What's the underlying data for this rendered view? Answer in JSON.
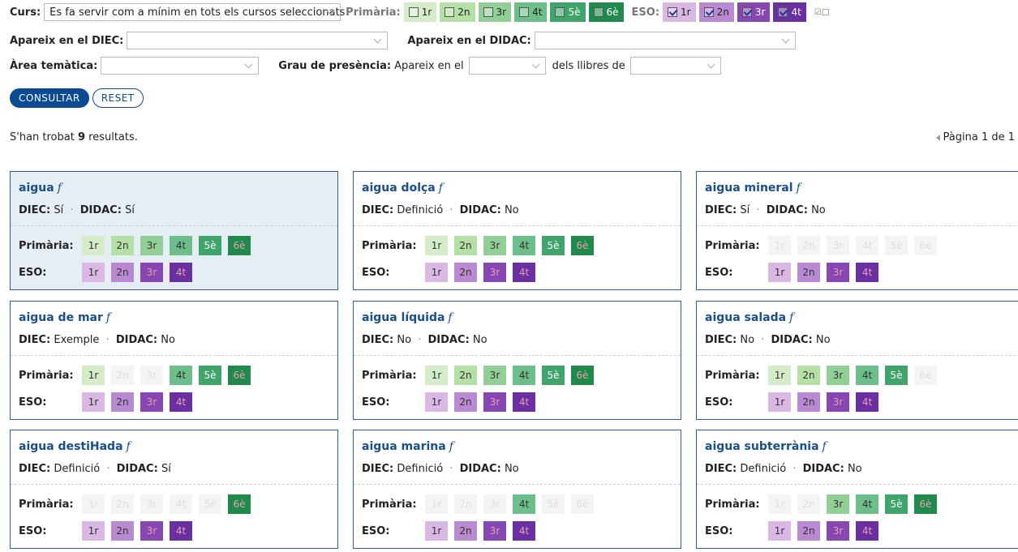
{
  "filters": {
    "curs_label": "Curs:",
    "curs_value": "Es fa servir com a mínim en tots els cursos seleccionats",
    "primaria_label": "Primària:",
    "eso_label": "ESO:",
    "primaria_levels": [
      "1r",
      "2n",
      "3r",
      "4t",
      "5è",
      "6è"
    ],
    "eso_levels": [
      "1r",
      "2n",
      "3r",
      "4t"
    ],
    "primaria_checked": [
      false,
      false,
      false,
      false,
      false,
      false
    ],
    "eso_checked": [
      true,
      true,
      true,
      true
    ],
    "diec_label": "Apareix en el DIEC:",
    "didac_label": "Apareix en el DIDAC:",
    "area_label": "Àrea temàtica:",
    "grau_label": "Grau de presència:",
    "grau_text1": "Apareix en el",
    "grau_text2": "dels llibres de"
  },
  "buttons": {
    "consultar": "CONSULTAR",
    "reset": "RESET"
  },
  "results": {
    "prefix": "S'han trobat ",
    "count": "9",
    "suffix": " resultats."
  },
  "pager": {
    "text": "Pàgina 1 de 1"
  },
  "labels": {
    "diec": "DIEC:",
    "didac": "DIDAC:",
    "primaria": "Primària:",
    "eso": "ESO:",
    "dot": "·"
  },
  "colors": {
    "primaria": [
      "#d4ecc8",
      "#b4dfa5",
      "#92cf96",
      "#6cbf8a",
      "#3fa56b",
      "#1f8a4b"
    ],
    "eso": [
      "#d9b8e4",
      "#b98ad2",
      "#8647b3",
      "#6a2fa0"
    ],
    "faded": "#f4f4f4"
  },
  "cards": [
    {
      "word": "aigua",
      "gender": "f",
      "diec": "Sí",
      "didac": "Sí",
      "primaria": [
        1,
        1,
        1,
        1,
        1,
        1
      ],
      "eso": [
        1,
        1,
        1,
        1
      ]
    },
    {
      "word": "aigua dolça",
      "gender": "f",
      "diec": "Definició",
      "didac": "No",
      "primaria": [
        1,
        1,
        1,
        1,
        1,
        1
      ],
      "eso": [
        1,
        1,
        1,
        1
      ]
    },
    {
      "word": "aigua mineral",
      "gender": "f",
      "diec": "Sí",
      "didac": "No",
      "primaria": [
        0,
        0,
        0,
        0,
        0,
        0
      ],
      "eso": [
        1,
        1,
        1,
        1
      ]
    },
    {
      "word": "aigua de mar",
      "gender": "f",
      "diec": "Exemple",
      "didac": "No",
      "primaria": [
        1,
        0,
        0,
        1,
        1,
        1
      ],
      "eso": [
        1,
        1,
        1,
        1
      ]
    },
    {
      "word": "aigua líquida",
      "gender": "f",
      "diec": "No",
      "didac": "No",
      "primaria": [
        1,
        1,
        1,
        1,
        1,
        1
      ],
      "eso": [
        1,
        1,
        1,
        1
      ]
    },
    {
      "word": "aigua salada",
      "gender": "f",
      "diec": "No",
      "didac": "No",
      "primaria": [
        1,
        1,
        1,
        1,
        1,
        0
      ],
      "eso": [
        1,
        1,
        1,
        1
      ]
    },
    {
      "word": "aigua destiHada",
      "gender": "f",
      "diec": "Definició",
      "didac": "Sí",
      "primaria": [
        0,
        0,
        0,
        0,
        0,
        1
      ],
      "eso": [
        1,
        1,
        1,
        1
      ]
    },
    {
      "word": "aigua marina",
      "gender": "f",
      "diec": "Definició",
      "didac": "No",
      "primaria": [
        0,
        0,
        0,
        1,
        0,
        0
      ],
      "eso": [
        1,
        1,
        1,
        1
      ]
    },
    {
      "word": "aigua subterrània",
      "gender": "f",
      "diec": "Definició",
      "didac": "No",
      "primaria": [
        0,
        0,
        1,
        1,
        1,
        1
      ],
      "eso": [
        1,
        1,
        1,
        1
      ]
    }
  ]
}
